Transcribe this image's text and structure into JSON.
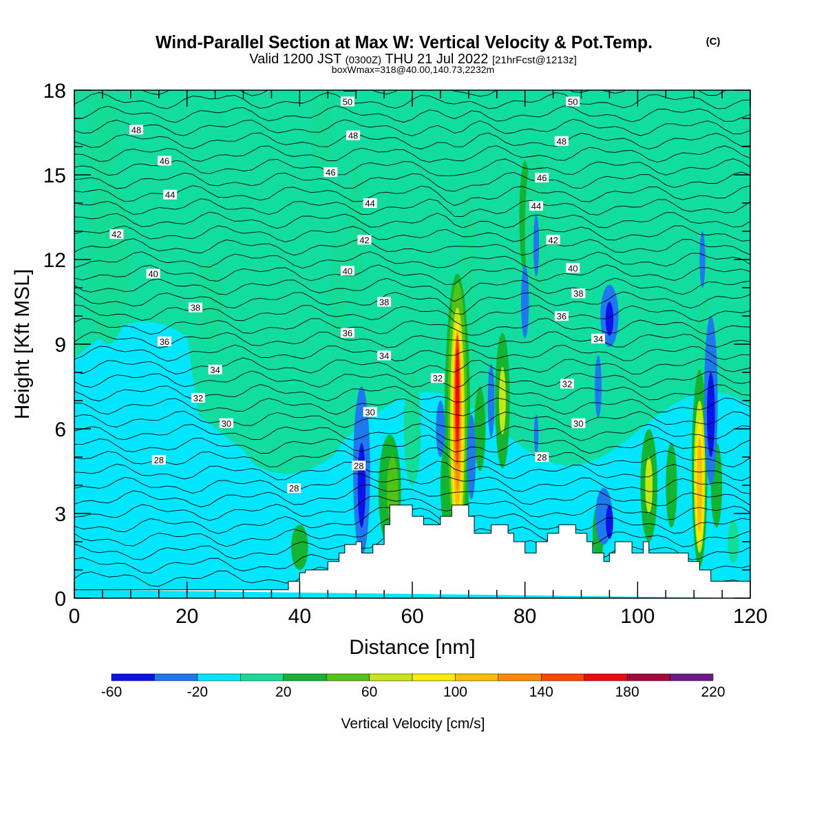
{
  "chart_data": {
    "type": "heatmap",
    "title": "Wind-Parallel Section at Max W: Vertical Velocity & Pot.Temp.",
    "title_mark": "(C)",
    "subtitle": {
      "prefix": "Valid 1200 JST",
      "utc": "(0300Z)",
      "date": "THU 21 Jul 2022",
      "forecast": "[21hrFcst@1213z]"
    },
    "subtitle2": "boxWmax=318@40.00,140.73,2232m",
    "xlabel": "Distance [nm]",
    "ylabel": "Height [Kft MSL]",
    "xlim": [
      0,
      120
    ],
    "ylim": [
      0,
      18
    ],
    "x_ticks": [
      "0",
      "20",
      "40",
      "60",
      "80",
      "100",
      "120"
    ],
    "y_ticks": [
      "0",
      "3",
      "6",
      "9",
      "12",
      "15",
      "18"
    ],
    "colorbar": {
      "label": "Vertical Velocity [cm/s]",
      "tick_labels": [
        "-60",
        "-20",
        "20",
        "60",
        "100",
        "140",
        "180",
        "220"
      ],
      "bins": [
        -60,
        -40,
        -20,
        0,
        20,
        40,
        60,
        80,
        100,
        120,
        140,
        160,
        180,
        200,
        220
      ],
      "colors": [
        "#0a14e8",
        "#1e78f0",
        "#00e6ff",
        "#14dc96",
        "#14b432",
        "#50c314",
        "#c8e614",
        "#ffeb00",
        "#ffbe00",
        "#ff8c00",
        "#ff4600",
        "#f00a0a",
        "#a5093c",
        "#6e1a8a"
      ]
    },
    "background_level_colors": {
      "low": "#00e6ff",
      "mid": "#14dc96"
    },
    "terrain": [
      [
        0,
        0.3
      ],
      [
        38,
        0.3
      ],
      [
        38,
        0.6
      ],
      [
        40,
        0.6
      ],
      [
        40,
        0.9
      ],
      [
        41,
        0.9
      ],
      [
        41,
        1.0
      ],
      [
        45,
        1.0
      ],
      [
        45,
        1.3
      ],
      [
        47,
        1.3
      ],
      [
        47,
        1.6
      ],
      [
        48,
        1.6
      ],
      [
        48,
        1.9
      ],
      [
        50,
        1.9
      ],
      [
        50,
        2.0
      ],
      [
        51,
        2.0
      ],
      [
        51,
        1.6
      ],
      [
        53,
        1.6
      ],
      [
        53,
        1.9
      ],
      [
        55,
        1.9
      ],
      [
        55,
        2.6
      ],
      [
        56,
        2.6
      ],
      [
        56,
        3.3
      ],
      [
        60,
        3.3
      ],
      [
        60,
        2.9
      ],
      [
        62,
        2.9
      ],
      [
        62,
        2.6
      ],
      [
        65,
        2.6
      ],
      [
        65,
        2.9
      ],
      [
        67,
        2.9
      ],
      [
        67,
        3.3
      ],
      [
        70,
        3.3
      ],
      [
        70,
        2.9
      ],
      [
        71,
        2.9
      ],
      [
        71,
        2.3
      ],
      [
        74,
        2.3
      ],
      [
        74,
        2.6
      ],
      [
        77,
        2.6
      ],
      [
        77,
        2.3
      ],
      [
        78,
        2.3
      ],
      [
        78,
        2.0
      ],
      [
        80,
        2.0
      ],
      [
        80,
        1.6
      ],
      [
        82,
        1.6
      ],
      [
        82,
        2.0
      ],
      [
        84,
        2.0
      ],
      [
        84,
        2.3
      ],
      [
        86,
        2.3
      ],
      [
        86,
        2.6
      ],
      [
        89,
        2.6
      ],
      [
        89,
        2.3
      ],
      [
        91,
        2.3
      ],
      [
        91,
        2.0
      ],
      [
        92,
        2.0
      ],
      [
        92,
        1.6
      ],
      [
        94,
        1.6
      ],
      [
        94,
        1.3
      ],
      [
        95,
        1.3
      ],
      [
        95,
        1.6
      ],
      [
        96,
        1.6
      ],
      [
        96,
        2.0
      ],
      [
        99,
        2.0
      ],
      [
        99,
        1.6
      ],
      [
        101,
        1.6
      ],
      [
        101,
        2.0
      ],
      [
        102,
        2.0
      ],
      [
        102,
        1.6
      ],
      [
        109,
        1.6
      ],
      [
        109,
        1.3
      ],
      [
        111,
        1.3
      ],
      [
        111,
        1.0
      ],
      [
        113,
        1.0
      ],
      [
        113,
        0.6
      ],
      [
        120,
        0.6
      ],
      [
        120,
        0
      ]
    ],
    "cells": [
      {
        "x": 5,
        "y": 16.5,
        "w": 6,
        "h": 3.5,
        "v": 10
      },
      {
        "x": 6,
        "y": 12.0,
        "w": 8,
        "h": 6.0,
        "v": 10
      },
      {
        "x": 24,
        "y": 10.5,
        "w": 5,
        "h": 3.0,
        "v": 10
      },
      {
        "x": 44,
        "y": 16.5,
        "w": 4,
        "h": 3.0,
        "v": 10
      },
      {
        "x": 47,
        "y": 11.0,
        "w": 3,
        "h": 4.0,
        "v": 10
      },
      {
        "x": 50,
        "y": 13.0,
        "w": 3,
        "h": 5.0,
        "v": 10
      },
      {
        "x": 70,
        "y": 11.0,
        "w": 3,
        "h": 7.0,
        "v": 10
      },
      {
        "x": 60,
        "y": 6.0,
        "w": 3,
        "h": 4.0,
        "v": 10
      },
      {
        "x": 80,
        "y": 13.5,
        "w": 2,
        "h": 4.0,
        "v": 30
      },
      {
        "x": 82,
        "y": 13.0,
        "w": 4,
        "h": 6.0,
        "v": 10
      },
      {
        "x": 112,
        "y": 8.0,
        "w": 4,
        "h": 5.0,
        "v": 10
      },
      {
        "x": 40,
        "y": 1.8,
        "w": 3,
        "h": 1.6,
        "v": 30
      },
      {
        "x": 56,
        "y": 3.8,
        "w": 4,
        "h": 4.0,
        "v": 30
      },
      {
        "x": 56.5,
        "y": 3.8,
        "w": 2,
        "h": 2.5,
        "v": 50
      },
      {
        "x": 66,
        "y": 4.0,
        "w": 2,
        "h": 3.0,
        "v": 30
      },
      {
        "x": 72,
        "y": 6.0,
        "w": 2,
        "h": 3.0,
        "v": 30
      },
      {
        "x": 76,
        "y": 7.0,
        "w": 2.6,
        "h": 4.8,
        "v": 30
      },
      {
        "x": 76,
        "y": 7.0,
        "w": 1.2,
        "h": 2.4,
        "v": 70
      },
      {
        "x": 93,
        "y": 2.3,
        "w": 2,
        "h": 2.0,
        "v": 30
      },
      {
        "x": 102,
        "y": 4.0,
        "w": 3,
        "h": 4.0,
        "v": 30
      },
      {
        "x": 102,
        "y": 4.0,
        "w": 1.3,
        "h": 2.0,
        "v": 70
      },
      {
        "x": 106,
        "y": 4.0,
        "w": 2,
        "h": 3.0,
        "v": 30
      },
      {
        "x": 114,
        "y": 4.0,
        "w": 2,
        "h": 3.0,
        "v": 30
      },
      {
        "x": 112,
        "y": 5.0,
        "w": 2.4,
        "h": 3.5,
        "v": -10
      },
      {
        "x": 68,
        "y": 6.0,
        "w": 4.6,
        "h": 11.0,
        "v": 30
      },
      {
        "x": 68,
        "y": 6.5,
        "w": 3.4,
        "h": 9.4,
        "v": 50
      },
      {
        "x": 68,
        "y": 6.2,
        "w": 2.6,
        "h": 8.2,
        "v": 70
      },
      {
        "x": 68,
        "y": 6.2,
        "w": 2.0,
        "h": 7.2,
        "v": 90
      },
      {
        "x": 68,
        "y": 6.3,
        "w": 1.6,
        "h": 6.4,
        "v": 110
      },
      {
        "x": 68,
        "y": 6.6,
        "w": 1.2,
        "h": 5.6,
        "v": 130
      },
      {
        "x": 68,
        "y": 7.0,
        "w": 0.9,
        "h": 4.6,
        "v": 150
      },
      {
        "x": 68,
        "y": 7.2,
        "w": 0.6,
        "h": 3.4,
        "v": 170
      },
      {
        "x": 111,
        "y": 4.6,
        "w": 2.8,
        "h": 7.0,
        "v": 30
      },
      {
        "x": 111,
        "y": 4.3,
        "w": 2.0,
        "h": 5.4,
        "v": 70
      },
      {
        "x": 111,
        "y": 4.1,
        "w": 1.5,
        "h": 4.4,
        "v": 90
      },
      {
        "x": 111,
        "y": 4.0,
        "w": 1.0,
        "h": 3.4,
        "v": 110
      },
      {
        "x": 51,
        "y": 4.5,
        "w": 3,
        "h": 6.0,
        "v": -30
      },
      {
        "x": 51,
        "y": 4.0,
        "w": 1.4,
        "h": 3.0,
        "v": -50
      },
      {
        "x": 65,
        "y": 6.0,
        "w": 1.6,
        "h": 2.0,
        "v": -30
      },
      {
        "x": 70.5,
        "y": 5.0,
        "w": 1.5,
        "h": 3.0,
        "v": -30
      },
      {
        "x": 74,
        "y": 7.0,
        "w": 1.2,
        "h": 2.6,
        "v": -30
      },
      {
        "x": 80,
        "y": 10.5,
        "w": 1.4,
        "h": 2.6,
        "v": -30
      },
      {
        "x": 82,
        "y": 12.5,
        "w": 1.0,
        "h": 2.2,
        "v": -30
      },
      {
        "x": 95,
        "y": 10.0,
        "w": 3.2,
        "h": 2.2,
        "v": -30
      },
      {
        "x": 95,
        "y": 9.9,
        "w": 1.4,
        "h": 1.2,
        "v": -50
      },
      {
        "x": 94,
        "y": 2.9,
        "w": 3,
        "h": 2.0,
        "v": -30
      },
      {
        "x": 95,
        "y": 2.7,
        "w": 1.3,
        "h": 1.2,
        "v": -50
      },
      {
        "x": 93,
        "y": 7.5,
        "w": 1.2,
        "h": 2.2,
        "v": -30
      },
      {
        "x": 113,
        "y": 7.0,
        "w": 2.4,
        "h": 6.0,
        "v": -30
      },
      {
        "x": 113,
        "y": 6.5,
        "w": 1.4,
        "h": 3.0,
        "v": -50
      },
      {
        "x": 111.5,
        "y": 12.0,
        "w": 1.0,
        "h": 2.0,
        "v": -30
      },
      {
        "x": 82,
        "y": 5.8,
        "w": 0.8,
        "h": 1.4,
        "v": -30
      },
      {
        "x": 117,
        "y": 2.0,
        "w": 2,
        "h": 1.5,
        "v": 10
      }
    ],
    "theta_labels": [
      {
        "text": "48",
        "x": 11,
        "y": 16.6
      },
      {
        "text": "46",
        "x": 16,
        "y": 15.5
      },
      {
        "text": "44",
        "x": 17,
        "y": 14.3
      },
      {
        "text": "42",
        "x": 7.5,
        "y": 12.9
      },
      {
        "text": "40",
        "x": 14,
        "y": 11.5
      },
      {
        "text": "38",
        "x": 21.5,
        "y": 10.3
      },
      {
        "text": "36",
        "x": 16,
        "y": 9.1
      },
      {
        "text": "34",
        "x": 25,
        "y": 8.1
      },
      {
        "text": "32",
        "x": 22,
        "y": 7.1
      },
      {
        "text": "30",
        "x": 27,
        "y": 6.2
      },
      {
        "text": "28",
        "x": 15,
        "y": 4.9
      },
      {
        "text": "28",
        "x": 39,
        "y": 3.9
      },
      {
        "text": "50",
        "x": 48.5,
        "y": 17.6
      },
      {
        "text": "48",
        "x": 49.5,
        "y": 16.4
      },
      {
        "text": "46",
        "x": 45.5,
        "y": 15.1
      },
      {
        "text": "44",
        "x": 52.5,
        "y": 14.0
      },
      {
        "text": "42",
        "x": 51.5,
        "y": 12.7
      },
      {
        "text": "40",
        "x": 48.5,
        "y": 11.6
      },
      {
        "text": "38",
        "x": 55,
        "y": 10.5
      },
      {
        "text": "36",
        "x": 48.5,
        "y": 9.4
      },
      {
        "text": "34",
        "x": 55,
        "y": 8.6
      },
      {
        "text": "32",
        "x": 64.5,
        "y": 7.8
      },
      {
        "text": "30",
        "x": 52.5,
        "y": 6.6
      },
      {
        "text": "28",
        "x": 50.5,
        "y": 4.7
      },
      {
        "text": "50",
        "x": 88.5,
        "y": 17.6
      },
      {
        "text": "48",
        "x": 86.5,
        "y": 16.2
      },
      {
        "text": "46",
        "x": 83,
        "y": 14.9
      },
      {
        "text": "44",
        "x": 82,
        "y": 13.9
      },
      {
        "text": "42",
        "x": 85,
        "y": 12.7
      },
      {
        "text": "40",
        "x": 88.5,
        "y": 11.7
      },
      {
        "text": "38",
        "x": 89.5,
        "y": 10.8
      },
      {
        "text": "36",
        "x": 86.5,
        "y": 10.0
      },
      {
        "text": "34",
        "x": 93,
        "y": 9.2
      },
      {
        "text": "32",
        "x": 87.5,
        "y": 7.6
      },
      {
        "text": "30",
        "x": 89.5,
        "y": 6.2
      },
      {
        "text": "28",
        "x": 83,
        "y": 5.0
      }
    ]
  }
}
